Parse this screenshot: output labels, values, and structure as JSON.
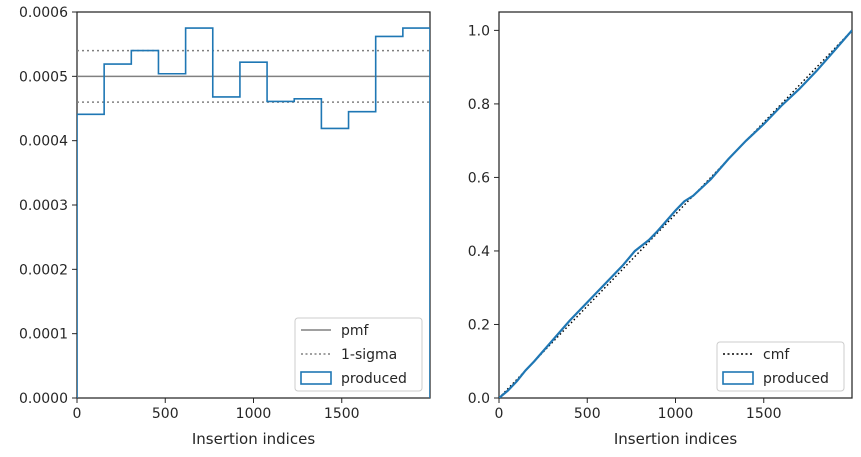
{
  "chart_data": [
    {
      "type": "step",
      "xlabel": "Insertion indices",
      "ylabel": "",
      "xlim": [
        0,
        2000
      ],
      "ylim": [
        0,
        0.0006
      ],
      "x_ticks": [
        0,
        500,
        1000,
        1500
      ],
      "y_ticks": [
        "0.0000",
        "0.0001",
        "0.0002",
        "0.0003",
        "0.0004",
        "0.0005",
        "0.0006"
      ],
      "y_tick_values": [
        0,
        0.0001,
        0.0002,
        0.0003,
        0.0004,
        0.0005,
        0.0006
      ],
      "bin_edges": [
        0,
        153.8,
        307.7,
        461.5,
        615.4,
        769.2,
        923.1,
        1076.9,
        1230.8,
        1384.6,
        1538.5,
        1692.3,
        1846.2,
        2000
      ],
      "series": [
        {
          "name": "produced",
          "color": "#1f77b4",
          "style": "step",
          "values": [
            0.000441,
            0.000519,
            0.00054,
            0.000504,
            0.000575,
            0.000468,
            0.000522,
            0.000461,
            0.000465,
            0.000419,
            0.000445,
            0.000562,
            0.000575
          ]
        }
      ],
      "hlines": [
        {
          "name": "pmf",
          "y": 0.0005,
          "color": "#808080",
          "style": "solid"
        },
        {
          "name": "1-sigma",
          "y": 0.00054,
          "color": "#808080",
          "style": "dotted"
        },
        {
          "name": "1-sigma",
          "y": 0.00046,
          "color": "#808080",
          "style": "dotted"
        }
      ],
      "legend": {
        "position": "lower-right",
        "entries": [
          {
            "label": "pmf",
            "kind": "solid",
            "color": "#808080"
          },
          {
            "label": "1-sigma",
            "kind": "dotted",
            "color": "#808080"
          },
          {
            "label": "produced",
            "kind": "patch",
            "color": "#1f77b4"
          }
        ]
      }
    },
    {
      "type": "line",
      "xlabel": "Insertion indices",
      "ylabel": "",
      "xlim": [
        0,
        2000
      ],
      "ylim": [
        0,
        1.05
      ],
      "x_ticks": [
        0,
        500,
        1000,
        1500
      ],
      "y_ticks": [
        "0.0",
        "0.2",
        "0.4",
        "0.6",
        "0.8",
        "1.0"
      ],
      "y_tick_values": [
        0,
        0.2,
        0.4,
        0.6,
        0.8,
        1.0
      ],
      "series": [
        {
          "name": "cmf",
          "color": "#000000",
          "style": "dotted",
          "x": [
            0,
            2000
          ],
          "y": [
            0,
            1.0
          ]
        },
        {
          "name": "produced",
          "color": "#1f77b4",
          "style": "solid",
          "x": [
            0,
            50,
            100,
            150,
            200,
            300,
            400,
            500,
            600,
            700,
            770,
            850,
            900,
            1000,
            1050,
            1100,
            1200,
            1300,
            1400,
            1500,
            1600,
            1700,
            1800,
            1900,
            2000
          ],
          "y": [
            0,
            0.02,
            0.045,
            0.075,
            0.1,
            0.155,
            0.21,
            0.26,
            0.31,
            0.36,
            0.4,
            0.43,
            0.455,
            0.51,
            0.535,
            0.55,
            0.595,
            0.65,
            0.7,
            0.745,
            0.795,
            0.84,
            0.89,
            0.945,
            1.0
          ]
        }
      ],
      "legend": {
        "position": "lower-right",
        "entries": [
          {
            "label": "cmf",
            "kind": "dotted",
            "color": "#000000"
          },
          {
            "label": "produced",
            "kind": "patch",
            "color": "#1f77b4"
          }
        ]
      }
    }
  ]
}
